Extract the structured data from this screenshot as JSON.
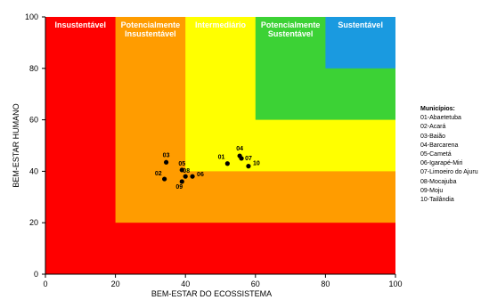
{
  "chart_data": {
    "type": "scatter",
    "xlabel": "BEM-ESTAR DO ECOSSISTEMA",
    "ylabel": "BEM-ESTAR HUMANO",
    "xlim": [
      0,
      100
    ],
    "ylim": [
      0,
      100
    ],
    "xticks": [
      "0",
      "20",
      "40",
      "60",
      "80",
      "100"
    ],
    "yticks": [
      "0",
      "20",
      "40",
      "60",
      "80",
      "100"
    ],
    "grid": false,
    "legend_position": "right",
    "zones": [
      {
        "label": "Insustentável",
        "min": 0,
        "max": 20,
        "color": "#ff0000"
      },
      {
        "label": "Potencialmente\nInsustentável",
        "min": 20,
        "max": 40,
        "color": "#ff9c00"
      },
      {
        "label": "Intermediário",
        "min": 40,
        "max": 60,
        "color": "#ffff00"
      },
      {
        "label": "Potencialmente\nSustentável",
        "min": 60,
        "max": 80,
        "color": "#3cd235"
      },
      {
        "label": "Sustentável",
        "min": 80,
        "max": 100,
        "color": "#1a9ae0"
      }
    ],
    "points": [
      {
        "label": "01",
        "x": 52,
        "y": 43
      },
      {
        "label": "02",
        "x": 34,
        "y": 37
      },
      {
        "label": "03",
        "x": 34.5,
        "y": 43.5
      },
      {
        "label": "04",
        "x": 55.5,
        "y": 46
      },
      {
        "label": "05",
        "x": 39,
        "y": 40.5
      },
      {
        "label": "06",
        "x": 42,
        "y": 38
      },
      {
        "label": "07",
        "x": 56,
        "y": 45
      },
      {
        "label": "08",
        "x": 40,
        "y": 38
      },
      {
        "label": "09",
        "x": 39,
        "y": 36
      },
      {
        "label": "10",
        "x": 58,
        "y": 42
      }
    ]
  },
  "legend": {
    "title": "Municípios:",
    "items": [
      "01-Abaetetuba",
      "02-Acará",
      "03-Baião",
      "04-Barcarena",
      "05-Cametá",
      "06-Igarapé-Miri",
      "07-Limoeiro do Ajuru",
      "08-Mocajuba",
      "09-Moju",
      "10-Tailândia"
    ]
  }
}
